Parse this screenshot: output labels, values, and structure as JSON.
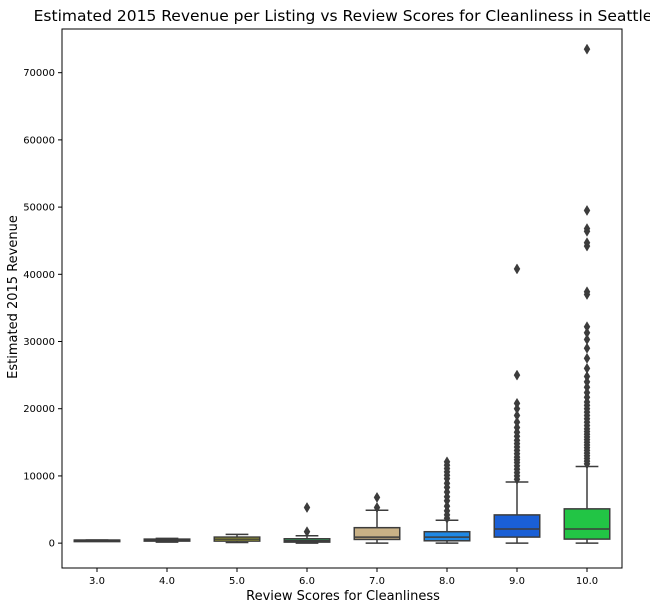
{
  "chart_data": {
    "type": "box",
    "title": "Estimated 2015 Revenue per Listing vs Review Scores for Cleanliness in Seattle",
    "xlabel": "Review Scores for Cleanliness",
    "ylabel": "Estimated 2015 Revenue",
    "ylim": [
      -3700,
      76500
    ],
    "yticks": [
      0,
      10000,
      20000,
      30000,
      40000,
      50000,
      60000,
      70000
    ],
    "ytick_labels": [
      "0",
      "10000",
      "20000",
      "30000",
      "40000",
      "50000",
      "60000",
      "70000"
    ],
    "categories": [
      "3.0",
      "4.0",
      "5.0",
      "6.0",
      "7.0",
      "8.0",
      "9.0",
      "10.0"
    ],
    "grid": false,
    "legend": "none",
    "boxes": [
      {
        "category": "3.0",
        "color": "#ec3a2c",
        "whislo": 450,
        "q1": 450,
        "med": 450,
        "q3": 450,
        "whishi": 450,
        "fliers": []
      },
      {
        "category": "4.0",
        "color": "#d89560",
        "whislo": 150,
        "q1": 300,
        "med": 450,
        "q3": 600,
        "whishi": 700,
        "fliers": []
      },
      {
        "category": "5.0",
        "color": "#c8c72a",
        "whislo": 100,
        "q1": 300,
        "med": 600,
        "q3": 900,
        "whishi": 1300,
        "fliers": []
      },
      {
        "category": "6.0",
        "color": "#2fa05a",
        "whislo": 0,
        "q1": 150,
        "med": 350,
        "q3": 650,
        "whishi": 1100,
        "fliers": [
          1700,
          5300
        ]
      },
      {
        "category": "7.0",
        "color": "#c9b186",
        "whislo": 0,
        "q1": 550,
        "med": 900,
        "q3": 2300,
        "whishi": 4900,
        "fliers": [
          5300,
          6800
        ]
      },
      {
        "category": "8.0",
        "color": "#1e88e5",
        "whislo": 0,
        "q1": 350,
        "med": 900,
        "q3": 1700,
        "whishi": 3400,
        "fliers": [
          3700,
          4200,
          4800,
          5500,
          6300,
          6900,
          7600,
          8300,
          8900,
          9600,
          10100,
          10600,
          11100,
          11600,
          12100
        ]
      },
      {
        "category": "9.0",
        "color": "#1a5fd6",
        "whislo": 0,
        "q1": 900,
        "med": 2100,
        "q3": 4200,
        "whishi": 9100,
        "fliers": [
          9500,
          10000,
          10500,
          11000,
          11500,
          12000,
          12400,
          12800,
          13300,
          13800,
          14300,
          14800,
          15300,
          15900,
          16500,
          17200,
          18000,
          19000,
          20000,
          20800,
          25000,
          40800
        ]
      },
      {
        "category": "10.0",
        "color": "#22c545",
        "whislo": 0,
        "q1": 600,
        "med": 2100,
        "q3": 5100,
        "whishi": 11400,
        "fliers": [
          11800,
          12200,
          12600,
          13000,
          13400,
          13800,
          14200,
          14600,
          15000,
          15400,
          15800,
          16200,
          16600,
          17000,
          17500,
          18000,
          18500,
          19000,
          19500,
          20000,
          20500,
          21000,
          21700,
          22400,
          23200,
          24000,
          24800,
          26000,
          27500,
          29000,
          30300,
          31300,
          32200,
          37000,
          37400,
          44200,
          44700,
          46400,
          46800,
          49500,
          73500
        ]
      }
    ]
  }
}
